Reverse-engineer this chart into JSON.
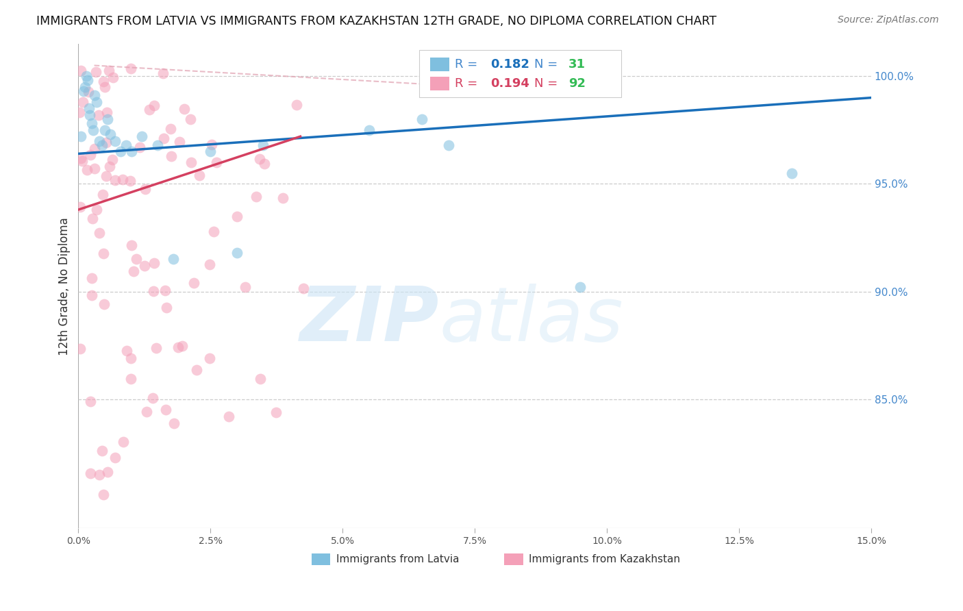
{
  "title": "IMMIGRANTS FROM LATVIA VS IMMIGRANTS FROM KAZAKHSTAN 12TH GRADE, NO DIPLOMA CORRELATION CHART",
  "source": "Source: ZipAtlas.com",
  "ylabel_left": "12th Grade, No Diploma",
  "xlim": [
    0.0,
    15.0
  ],
  "ylim": [
    79.0,
    101.5
  ],
  "y_ticks_right": [
    85.0,
    90.0,
    95.0,
    100.0
  ],
  "x_ticks": [
    0.0,
    2.5,
    5.0,
    7.5,
    10.0,
    12.5,
    15.0
  ],
  "R_latvia": 0.182,
  "N_latvia": 31,
  "R_kazakhstan": 0.194,
  "N_kazakhstan": 92,
  "color_latvia": "#7fbfdf",
  "color_kazakhstan": "#f4a0b8",
  "line_color_latvia": "#1a6fba",
  "line_color_kazakhstan": "#d44060",
  "legend_label_latvia": "Immigrants from Latvia",
  "legend_label_kazakhstan": "Immigrants from Kazakhstan",
  "dot_size": 130,
  "dot_alpha": 0.55,
  "lat_line_x0": 0.0,
  "lat_line_x1": 15.0,
  "lat_line_y0": 96.4,
  "lat_line_y1": 99.0,
  "kaz_line_x0": 0.0,
  "kaz_line_x1": 4.2,
  "kaz_line_y0": 93.8,
  "kaz_line_y1": 97.2,
  "dash_line_x0": 0.3,
  "dash_line_x1": 7.5,
  "dash_line_y0": 100.5,
  "dash_line_y1": 99.5
}
